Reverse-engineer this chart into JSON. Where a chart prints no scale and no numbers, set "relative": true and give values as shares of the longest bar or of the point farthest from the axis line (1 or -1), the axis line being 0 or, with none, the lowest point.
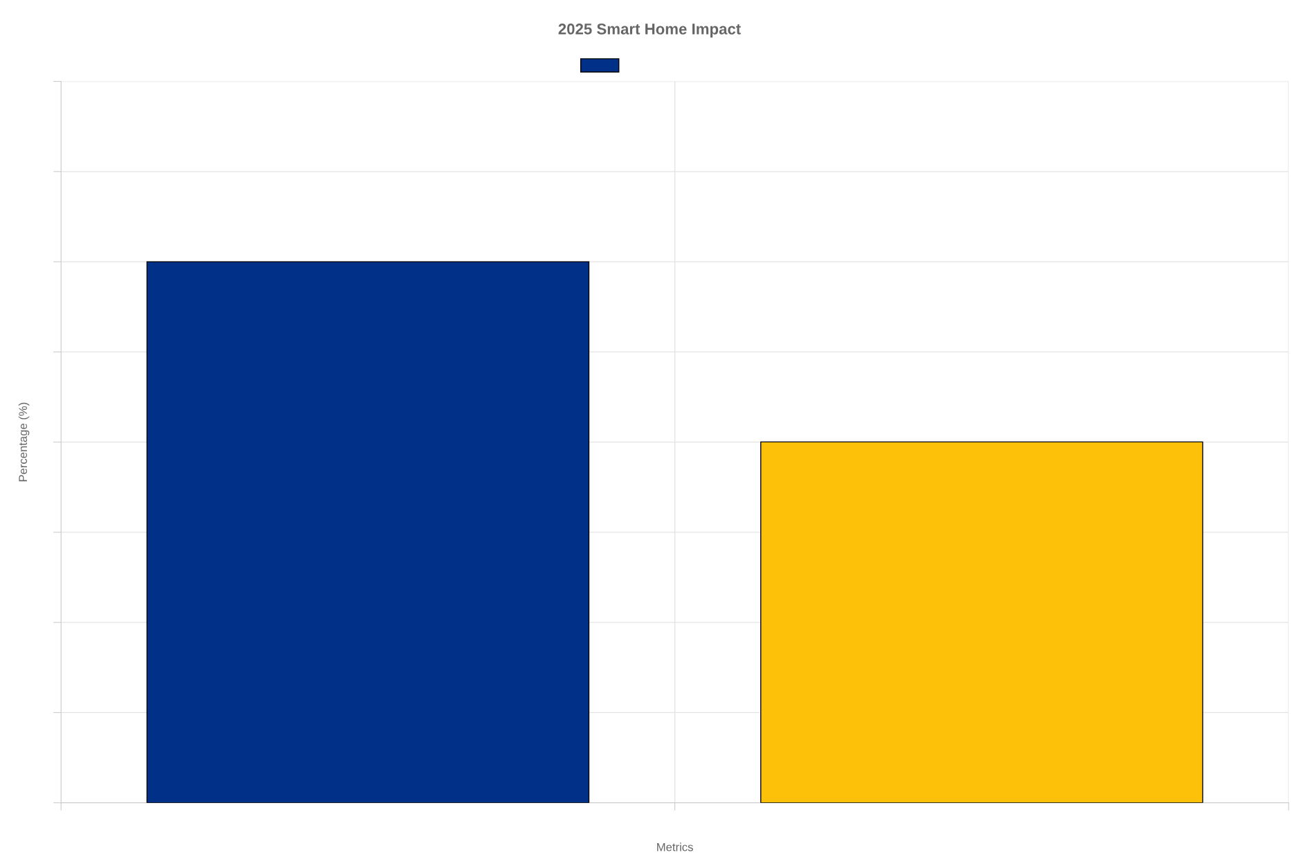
{
  "chart_data": {
    "type": "bar",
    "title": "2025 Smart Home Impact",
    "xlabel": "Metrics",
    "ylabel": "Percentage (%)",
    "categories": [
      null,
      null
    ],
    "series": [
      {
        "color": "#003087",
        "colors": [
          "#003087",
          "#fec10a"
        ],
        "values": [
          1,
          0.667
        ]
      }
    ],
    "relative": true,
    "grid": true
  }
}
